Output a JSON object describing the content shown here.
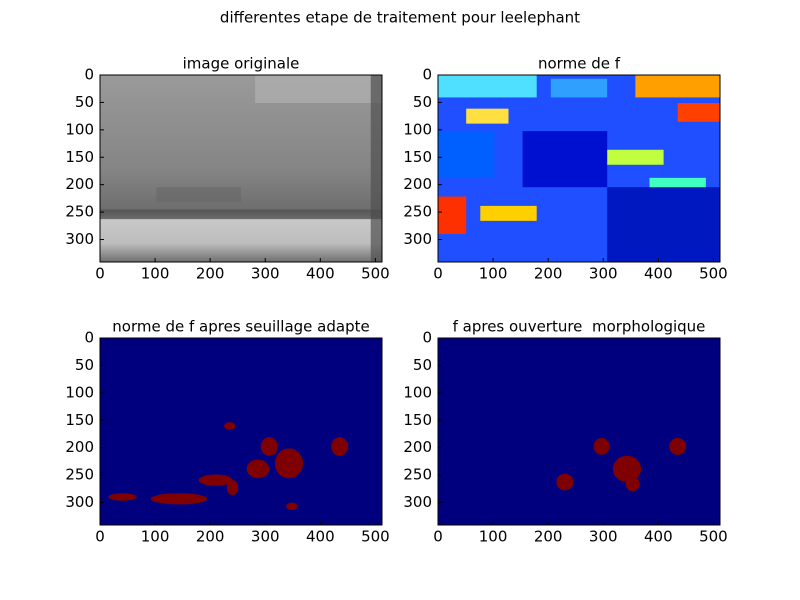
{
  "title": "differentes etape de traitement pour leelephant",
  "chart_data": [
    {
      "type": "image",
      "title": "image originale",
      "xlim": [
        0,
        512
      ],
      "ylim": [
        341,
        0
      ],
      "xticks": [
        0,
        100,
        200,
        300,
        400,
        500
      ],
      "yticks": [
        0,
        50,
        100,
        150,
        200,
        250,
        300
      ]
    },
    {
      "type": "image",
      "title": "norme de f",
      "xlim": [
        0,
        512
      ],
      "ylim": [
        341,
        0
      ],
      "xticks": [
        0,
        100,
        200,
        300,
        400,
        500
      ],
      "yticks": [
        0,
        50,
        100,
        150,
        200,
        250,
        300
      ]
    },
    {
      "type": "image",
      "title": "norme de f apres seuillage adapte",
      "xlim": [
        0,
        512
      ],
      "ylim": [
        341,
        0
      ],
      "xticks": [
        0,
        100,
        200,
        300,
        400,
        500
      ],
      "yticks": [
        0,
        50,
        100,
        150,
        200,
        250,
        300
      ]
    },
    {
      "type": "image",
      "title": "f apres ouverture  morphologique",
      "xlim": [
        0,
        512
      ],
      "ylim": [
        341,
        0
      ],
      "xticks": [
        0,
        100,
        200,
        300,
        400,
        500
      ],
      "yticks": [
        0,
        50,
        100,
        150,
        200,
        250,
        300
      ]
    }
  ]
}
